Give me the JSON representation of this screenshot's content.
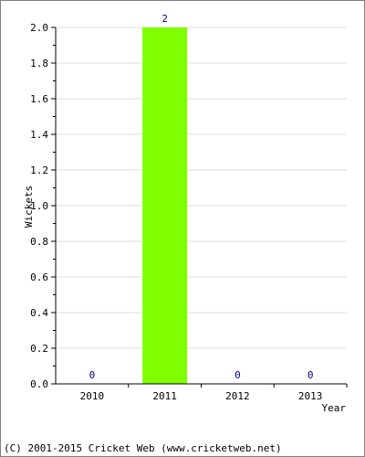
{
  "chart_data": {
    "type": "bar",
    "categories": [
      "2010",
      "2011",
      "2012",
      "2013"
    ],
    "values": [
      0,
      2,
      0,
      0
    ],
    "data_labels": [
      "0",
      "2",
      "0",
      "0"
    ],
    "title": "",
    "xlabel": "Year",
    "ylabel": "Wickets",
    "ylim": [
      0,
      2
    ],
    "yticks": [
      "0.0",
      "0.2",
      "0.4",
      "0.6",
      "0.8",
      "1.0",
      "1.2",
      "1.4",
      "1.6",
      "1.8",
      "2.0"
    ],
    "grid": true,
    "legend": "none"
  },
  "colors": {
    "bar": "#80ff00",
    "grid": "#dcdcdc",
    "axis": "#000000",
    "label_value": "#000080",
    "frame": "#808080"
  },
  "footer": {
    "text": "(C) 2001-2015 Cricket Web (www.cricketweb.net)"
  }
}
